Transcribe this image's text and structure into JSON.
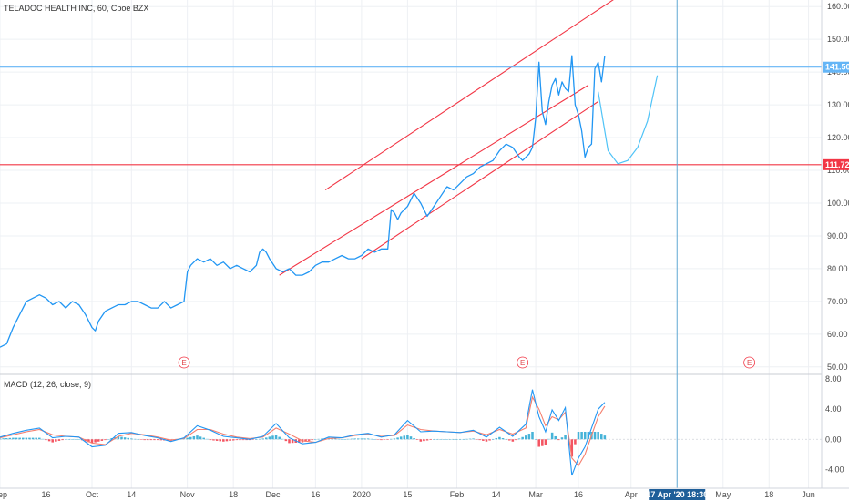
{
  "header": {
    "title": "TELADOC HEALTH INC, 60, Cboe BZX",
    "indicator_title": "MACD (12, 26, close, 9)"
  },
  "colors": {
    "price_line": "#2196f3",
    "projection_line": "#4fc3f7",
    "trend_lines": "#f23645",
    "support_line": "#f23645",
    "h_line_blue": "#64b5f6",
    "cursor_line": "#5fa8d3",
    "macd_line": "#2196f3",
    "signal_line": "#f57f6e",
    "hist_up": "#26a6d1",
    "hist_down": "#f23645",
    "axis_text": "#4a4a4a",
    "grid": "#eef0f4"
  },
  "chart_data": [
    {
      "type": "line",
      "title": "TELADOC HEALTH INC, 60, Cboe BZX",
      "xlabel": "",
      "ylabel": "",
      "ylim": [
        48,
        162
      ],
      "yticks": [
        "50.00",
        "60.00",
        "70.00",
        "80.00",
        "90.00",
        "100.00",
        "110.00",
        "120.00",
        "130.00",
        "140.00",
        "150.00",
        "160.00"
      ],
      "ytick_values": [
        50,
        60,
        70,
        80,
        90,
        100,
        110,
        120,
        130,
        140,
        150,
        160
      ],
      "xtick_labels": [
        "Sep",
        "16",
        "Oct",
        "14",
        "Nov",
        "18",
        "Dec",
        "16",
        "2020",
        "15",
        "Feb",
        "14",
        "Mar",
        "16",
        "Apr",
        "May",
        "18",
        "Jun"
      ],
      "xtick_index": [
        0,
        14,
        28,
        40,
        57,
        71,
        83,
        96,
        110,
        124,
        139,
        151,
        163,
        176,
        192,
        220,
        234,
        246
      ],
      "x_range": [
        0,
        250
      ],
      "series": [
        {
          "role": "price",
          "x": [
            0,
            2,
            4,
            6,
            8,
            10,
            12,
            14,
            16,
            18,
            20,
            22,
            24,
            26,
            28,
            29,
            30,
            32,
            34,
            36,
            38,
            40,
            42,
            44,
            46,
            48,
            50,
            52,
            54,
            56,
            57,
            58,
            60,
            62,
            64,
            66,
            68,
            70,
            72,
            74,
            76,
            78,
            79,
            80,
            81,
            82,
            84,
            86,
            88,
            90,
            92,
            94,
            96,
            98,
            100,
            102,
            104,
            106,
            108,
            110,
            112,
            114,
            116,
            118,
            119,
            120,
            121,
            122,
            124,
            126,
            128,
            130,
            132,
            134,
            136,
            138,
            140,
            142,
            144,
            146,
            148,
            150,
            152,
            154,
            156,
            158,
            159,
            160,
            161,
            162,
            163,
            164,
            165,
            166,
            167,
            168,
            169,
            170,
            171,
            172,
            173,
            174,
            175,
            176,
            177,
            178,
            179,
            180,
            181,
            182,
            183,
            184
          ],
          "values": [
            56,
            57,
            62,
            66,
            70,
            71,
            72,
            71,
            69,
            70,
            68,
            70,
            69,
            66,
            62,
            61,
            64,
            67,
            68,
            69,
            69,
            70,
            70,
            69,
            68,
            68,
            70,
            68,
            69,
            70,
            79,
            81,
            83,
            82,
            83,
            81,
            82,
            80,
            81,
            80,
            79,
            81,
            85,
            86,
            85,
            83,
            80,
            79,
            80,
            78,
            78,
            79,
            81,
            82,
            82,
            83,
            84,
            83,
            83,
            84,
            86,
            85,
            86,
            86,
            98,
            97,
            95,
            97,
            99,
            103,
            100,
            96,
            99,
            102,
            105,
            104,
            106,
            108,
            109,
            111,
            112,
            113,
            116,
            118,
            117,
            114,
            113,
            114,
            115,
            117,
            126,
            143,
            128,
            124,
            131,
            136,
            138,
            133,
            137,
            135,
            134,
            145,
            130,
            127,
            122,
            114,
            117,
            118,
            141,
            143,
            137,
            145
          ]
        },
        {
          "role": "projection",
          "x": [
            182,
            185,
            188,
            191,
            194,
            197,
            200
          ],
          "values": [
            134,
            116,
            112,
            113,
            117,
            125,
            139
          ]
        }
      ],
      "lines": [
        {
          "name": "channel-upper",
          "from": [
            99,
            104
          ],
          "to": [
            188,
            163
          ]
        },
        {
          "name": "channel-middle",
          "from": [
            85,
            78
          ],
          "to": [
            179,
            136
          ]
        },
        {
          "name": "channel-lower",
          "from": [
            110,
            83
          ],
          "to": [
            182,
            131
          ]
        }
      ],
      "hlines": [
        {
          "name": "resistance",
          "value": 141.5,
          "label": "141.50"
        },
        {
          "name": "support",
          "value": 111.72,
          "label": "111.72"
        }
      ],
      "vline": {
        "index": 206,
        "label": "17 Apr '20  18:30"
      },
      "earnings_markers": {
        "label": "E",
        "index": [
          56,
          159,
          228
        ]
      }
    },
    {
      "type": "line",
      "title": "MACD (12, 26, close, 9)",
      "ylim": [
        -6.5,
        8.5
      ],
      "yticks": [
        "-4.00",
        "0.00",
        "4.00",
        "8.00"
      ],
      "ytick_values": [
        -4,
        0,
        4,
        8
      ],
      "x_range": [
        0,
        250
      ],
      "series": [
        {
          "name": "MACD",
          "x": [
            0,
            4,
            8,
            12,
            16,
            20,
            24,
            28,
            32,
            36,
            40,
            44,
            48,
            52,
            56,
            60,
            64,
            68,
            72,
            76,
            80,
            84,
            88,
            92,
            96,
            100,
            104,
            108,
            112,
            116,
            120,
            124,
            128,
            132,
            136,
            140,
            144,
            148,
            152,
            156,
            160,
            162,
            164,
            166,
            168,
            170,
            172,
            174,
            176,
            178,
            180,
            182,
            184
          ],
          "values": [
            0.3,
            0.8,
            1.2,
            1.5,
            0.2,
            0.4,
            0.3,
            -1.0,
            -0.8,
            0.8,
            0.9,
            0.5,
            0.2,
            -0.3,
            0.2,
            1.8,
            1.2,
            0.4,
            0.2,
            0.0,
            0.4,
            2.1,
            0.2,
            -0.6,
            -0.4,
            0.3,
            0.2,
            0.6,
            0.8,
            0.3,
            0.6,
            2.5,
            1.0,
            1.1,
            1.0,
            0.9,
            1.2,
            0.3,
            1.6,
            0.4,
            2.0,
            6.6,
            3.0,
            1.0,
            3.9,
            2.5,
            4.2,
            -4.8,
            -2.5,
            -1.0,
            1.5,
            4.0,
            4.9
          ]
        },
        {
          "name": "Signal",
          "x": [
            0,
            4,
            8,
            12,
            16,
            20,
            24,
            28,
            32,
            36,
            40,
            44,
            48,
            52,
            56,
            60,
            64,
            68,
            72,
            76,
            80,
            84,
            88,
            92,
            96,
            100,
            104,
            108,
            112,
            116,
            120,
            124,
            128,
            132,
            136,
            140,
            144,
            148,
            152,
            156,
            160,
            162,
            164,
            166,
            168,
            170,
            172,
            174,
            176,
            178,
            180,
            182,
            184
          ],
          "values": [
            0.2,
            0.6,
            1.0,
            1.3,
            0.6,
            0.4,
            0.3,
            -0.5,
            -0.7,
            0.4,
            0.8,
            0.6,
            0.3,
            -0.1,
            0.1,
            1.3,
            1.3,
            0.7,
            0.3,
            0.1,
            0.3,
            1.5,
            0.7,
            -0.2,
            -0.4,
            0.1,
            0.2,
            0.5,
            0.7,
            0.4,
            0.5,
            1.9,
            1.3,
            1.1,
            1.0,
            0.9,
            1.1,
            0.6,
            1.3,
            0.7,
            1.5,
            5.6,
            4.0,
            1.8,
            3.0,
            2.6,
            3.6,
            -2.5,
            -3.5,
            -2.0,
            0.5,
            3.0,
            4.4
          ]
        }
      ]
    }
  ]
}
